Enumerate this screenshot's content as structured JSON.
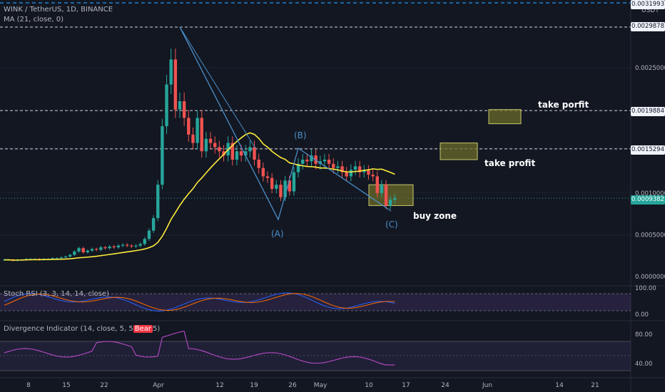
{
  "header": {
    "symbol_line": "WINK / TetherUS, 1D, BINANCE",
    "ma_line": "MA (21, close, 0)"
  },
  "price_axis": {
    "unit": "USDT",
    "tick_labels": [
      "0.0029878",
      "0.0025000",
      "0.0019884",
      "0.0015294",
      "0.0010000",
      "0.0009382",
      "0.0005000",
      "0.0000000"
    ],
    "top_tag": "0.0031993"
  },
  "time_axis": {
    "labels": [
      "8",
      "15",
      "22",
      "Apr",
      "12",
      "19",
      "26",
      "May",
      "10",
      "17",
      "24",
      "Jun",
      "14",
      "21"
    ]
  },
  "stoch_rsi": {
    "title": "Stoch RSI (3, 3, 14, 14, close)",
    "levels": [
      "100.00",
      "0.00"
    ],
    "k_color": "#2962ff",
    "d_color": "#ff6d00"
  },
  "divergence": {
    "title_prefix": "Divergence Indicator (14, close, 5, 5",
    "title_suffix": "5)",
    "bear_tag": "Bear",
    "levels": [
      "80.00",
      "40.00"
    ],
    "color": "#ab47bc"
  },
  "annotations": {
    "wave_a": "(A)",
    "wave_b": "(B)",
    "wave_c": "(C)",
    "buy_zone": "buy zone",
    "take_profit": "take profit",
    "take_profit_2": "take porfit"
  },
  "colors": {
    "up": "#26a69a",
    "down": "#ef5350",
    "ma": "#ffeb3b",
    "wave": "#4b8ec8",
    "zone_fill": "#6b6b2a",
    "zone_stroke": "#c8c86a"
  },
  "chart_data": {
    "type": "candlestick",
    "interval": "1D",
    "price_levels_marked": [
      0.0029878,
      0.0019884,
      0.0015294,
      0.0009382
    ],
    "current_price": 0.0009382,
    "approx_key_points": {
      "peak": 0.0029878,
      "wave_a_low": 0.00068,
      "wave_b_high": 0.00155,
      "wave_c_low": 0.00078
    },
    "zones": [
      {
        "label": "buy zone",
        "from": 0.00085,
        "to": 0.0011
      },
      {
        "label": "take profit",
        "from": 0.0014,
        "to": 0.0016
      },
      {
        "label": "take porfit",
        "from": 0.00183,
        "to": 0.002
      }
    ]
  }
}
